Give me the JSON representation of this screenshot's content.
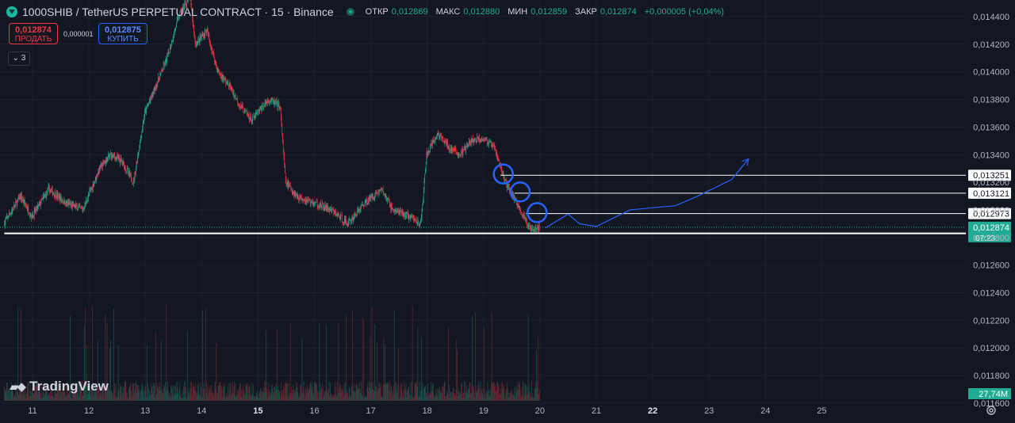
{
  "header": {
    "symbol": "1000SHIB / TetherUS PERPETUAL CONTRACT · 15 · Binance",
    "open_label": "ОТКР",
    "open": "0,012869",
    "high_label": "МАКС",
    "high": "0,012880",
    "low_label": "МИН",
    "low": "0,012859",
    "close_label": "ЗАКР",
    "close": "0,012874",
    "change": "+0,000005 (+0,04%)"
  },
  "trade": {
    "sell_price": "0,012874",
    "sell_label": "ПРОДАТЬ",
    "spread": "0,000001",
    "buy_price": "0,012875",
    "buy_label": "КУПИТЬ"
  },
  "indicators_count": "3",
  "branding": "TradingView",
  "colors": {
    "background": "#131722",
    "up": "#22ab94",
    "down": "#f23645",
    "annotation": "#2962ff",
    "label_bg": "#ffffff",
    "last_price_bg": "#22ab94"
  },
  "icons": {
    "collapse": "chevron-down-icon",
    "settings": "gear-icon",
    "logo": "tradingview-logo-icon",
    "symbol": "binance-symbol-icon"
  },
  "chart_data": {
    "type": "candlestick",
    "y_ticks": [
      "0,014400",
      "0,014200",
      "0,014000",
      "0,013800",
      "0,013600",
      "0,013400",
      "0,013200",
      "0,013000",
      "0,012800",
      "0,012600",
      "0,012400",
      "0,012200",
      "0,012000",
      "0,011800",
      "0,011600"
    ],
    "y_tick_values": [
      0.0144,
      0.0142,
      0.014,
      0.0138,
      0.0136,
      0.0134,
      0.0132,
      0.013,
      0.0128,
      0.0126,
      0.0124,
      0.0122,
      0.012,
      0.0118,
      0.0116
    ],
    "x_ticks": [
      "11",
      "12",
      "13",
      "14",
      "15",
      "16",
      "17",
      "18",
      "19",
      "20",
      "21",
      "22",
      "23",
      "24",
      "25"
    ],
    "x_tick_days": [
      11,
      12,
      13,
      14,
      15,
      16,
      17,
      18,
      19,
      20,
      21,
      22,
      23,
      24,
      25
    ],
    "x_bold": [
      "15",
      "22"
    ],
    "price_path": [
      [
        10.5,
        0.0129
      ],
      [
        10.8,
        0.0131
      ],
      [
        11.0,
        0.01295
      ],
      [
        11.3,
        0.01315
      ],
      [
        11.6,
        0.01305
      ],
      [
        11.9,
        0.013
      ],
      [
        12.2,
        0.0133
      ],
      [
        12.4,
        0.0134
      ],
      [
        12.6,
        0.01335
      ],
      [
        12.8,
        0.0132
      ],
      [
        13.0,
        0.0137
      ],
      [
        13.2,
        0.0139
      ],
      [
        13.4,
        0.0141
      ],
      [
        13.6,
        0.0144
      ],
      [
        13.8,
        0.01455
      ],
      [
        13.9,
        0.0142
      ],
      [
        14.1,
        0.0143
      ],
      [
        14.3,
        0.014
      ],
      [
        14.5,
        0.0139
      ],
      [
        14.7,
        0.01375
      ],
      [
        14.9,
        0.01365
      ],
      [
        15.2,
        0.0138
      ],
      [
        15.4,
        0.01375
      ],
      [
        15.5,
        0.0132
      ],
      [
        15.7,
        0.0131
      ],
      [
        16.0,
        0.01305
      ],
      [
        16.3,
        0.013
      ],
      [
        16.6,
        0.0129
      ],
      [
        16.9,
        0.01305
      ],
      [
        17.2,
        0.01315
      ],
      [
        17.4,
        0.013
      ],
      [
        17.7,
        0.01295
      ],
      [
        17.9,
        0.0129
      ],
      [
        18.0,
        0.0134
      ],
      [
        18.2,
        0.01355
      ],
      [
        18.4,
        0.01345
      ],
      [
        18.6,
        0.0134
      ],
      [
        18.8,
        0.0135
      ],
      [
        19.0,
        0.01352
      ],
      [
        19.2,
        0.01345
      ],
      [
        19.4,
        0.0132
      ],
      [
        19.6,
        0.01305
      ],
      [
        19.8,
        0.01288
      ],
      [
        20.0,
        0.01287
      ]
    ],
    "volume_peak_label": "27,74M",
    "horizontal_levels": [
      {
        "price": 0.013251,
        "label": "0,013251",
        "from_day": 19.3
      },
      {
        "price": 0.013121,
        "label": "0,013121",
        "from_day": 19.55
      },
      {
        "price": 0.012973,
        "label": "0,012973",
        "from_day": 19.75
      },
      {
        "price": 0.01283,
        "label": "0,012830",
        "from_day": 10.5
      }
    ],
    "last_price": {
      "price": 0.012874,
      "label": "0,012874",
      "countdown": "07:23"
    },
    "circles": [
      [
        19.35,
        0.01326
      ],
      [
        19.65,
        0.01313
      ],
      [
        19.95,
        0.01298
      ]
    ],
    "forecast_path": [
      [
        20.1,
        0.01287
      ],
      [
        20.5,
        0.01297
      ],
      [
        20.7,
        0.0129
      ],
      [
        21.0,
        0.01288
      ],
      [
        21.3,
        0.01294
      ],
      [
        21.6,
        0.013
      ],
      [
        22.4,
        0.01303
      ],
      [
        22.8,
        0.0131
      ],
      [
        23.4,
        0.01322
      ],
      [
        23.7,
        0.01337
      ]
    ]
  }
}
